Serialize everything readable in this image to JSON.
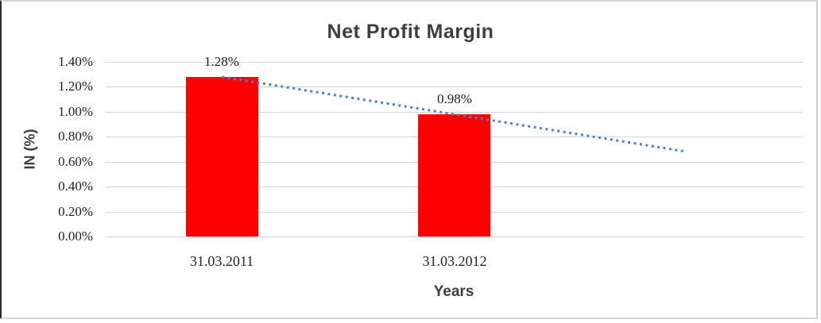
{
  "chart_data": {
    "type": "bar",
    "title": "Net Profit Margin",
    "xlabel": "Years",
    "ylabel": "IN (%)",
    "categories": [
      "31.03.2011",
      "31.03.2012"
    ],
    "series": [
      {
        "name": "Net Profit Margin",
        "values": [
          1.28,
          0.98
        ]
      }
    ],
    "data_labels": [
      "1.28%",
      "0.98%"
    ],
    "ylim": [
      0,
      1.4
    ],
    "ytick_step": 0.2,
    "ytick_labels": [
      "0.00%",
      "0.20%",
      "0.40%",
      "0.60%",
      "0.80%",
      "1.00%",
      "1.20%",
      "1.40%"
    ],
    "grid": true,
    "legend": false,
    "trendline": {
      "type": "linear",
      "style": "dotted",
      "start_value": 1.28,
      "end_value": 0.68,
      "forecast_periods": 1
    },
    "colors": {
      "bar": "#FF0000",
      "trendline": "#4F81BD",
      "gridline": "#D2D2D2",
      "title_text": "#3F3F3F",
      "tick_text": "#1F1F1F",
      "frame_border": "#D6D6D6",
      "frame_left_border": "#2B2B2B"
    }
  }
}
